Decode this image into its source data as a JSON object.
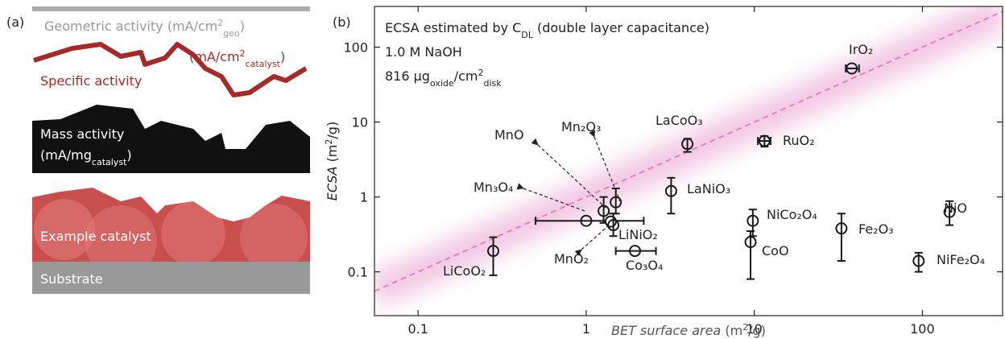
{
  "panel_a": {
    "label": "(a)",
    "geometric": [
      {
        "text": "Geometric activity (mA/cm"
      },
      {
        "text": "2",
        "sup": true
      },
      {
        "text": "geo",
        "sub": true
      },
      {
        "text": ")"
      }
    ],
    "specific_unit": [
      {
        "text": "(mA/cm"
      },
      {
        "text": "2",
        "sup": true
      },
      {
        "text": "catalyst",
        "sub": true
      },
      {
        "text": ")"
      }
    ],
    "specific": "Specific activity",
    "mass": "Mass activity",
    "mass_unit": [
      {
        "text": "(mA/mg"
      },
      {
        "text": "catalyst",
        "sub": true
      },
      {
        "text": ")"
      }
    ],
    "catalyst": "Example catalyst",
    "substrate": "Substrate"
  },
  "chart_data": {
    "type": "scatter",
    "panel_label": "(b)",
    "annotations": [
      [
        {
          "text": "ECSA estimated by C"
        },
        {
          "text": "DL",
          "sub": true
        },
        {
          "text": " (double layer capacitance)"
        }
      ],
      [
        {
          "text": "1.0 M NaOH"
        }
      ],
      [
        {
          "text": "816 μg"
        },
        {
          "text": "oxide",
          "sub": true
        },
        {
          "text": "/cm"
        },
        {
          "text": "2",
          "sup": true
        },
        {
          "text": "disk",
          "sub": true
        }
      ]
    ],
    "x_label": [
      {
        "text": "BET surface area",
        "italic": true
      },
      {
        "text": " (m"
      },
      {
        "text": "2",
        "sup": true
      },
      {
        "text": "/g)"
      }
    ],
    "y_label": [
      {
        "text": "ECSA",
        "italic": true
      },
      {
        "text": " (m"
      },
      {
        "text": "2",
        "sup": true
      },
      {
        "text": "/g)"
      }
    ],
    "xlim": [
      0.055,
      300
    ],
    "ylim": [
      0.026,
      350
    ],
    "xticks": [
      0.1,
      1,
      10,
      100
    ],
    "yticks": [
      0.1,
      1,
      10,
      100
    ],
    "log_x": true,
    "log_y": true,
    "marker_color": "#1a1a1a",
    "guide_line": {
      "x": [
        0.055,
        300
      ],
      "y": [
        0.055,
        300
      ],
      "color": "#e27bbd"
    },
    "points": [
      {
        "name": "LiCoO₂",
        "x": 0.28,
        "y": 0.19,
        "y_err": [
          0.09,
          0.29
        ]
      },
      {
        "name": "Mn₃O₄",
        "x": 1.0,
        "y": 0.48,
        "x_err": [
          0.5,
          2.2
        ]
      },
      {
        "name": "MnO",
        "x": 1.27,
        "y": 0.65,
        "y_err": [
          0.45,
          1.0
        ]
      },
      {
        "name": "Mn₂O₃",
        "x": 1.5,
        "y": 0.85,
        "y_err": [
          0.6,
          1.3
        ]
      },
      {
        "name": "MnO₂",
        "x": 1.4,
        "y": 0.47
      },
      {
        "name": "LiNiO₂",
        "x": 1.45,
        "y": 0.42,
        "y_err": [
          0.3,
          0.6
        ]
      },
      {
        "name": "Co₃O₄",
        "x": 1.95,
        "y": 0.19,
        "x_err": [
          1.5,
          2.6
        ]
      },
      {
        "name": "LaNiO₃",
        "x": 3.2,
        "y": 1.2,
        "y_err": [
          0.6,
          1.8
        ]
      },
      {
        "name": "LaCoO₃",
        "x": 4.0,
        "y": 5.1,
        "y_err": [
          4.0,
          6.0
        ]
      },
      {
        "name": "RuO₂",
        "x": 11.5,
        "y": 5.6,
        "x_err": [
          10.5,
          12.5
        ],
        "y_err": [
          4.7,
          6.5
        ]
      },
      {
        "name": "IrO₂",
        "x": 38,
        "y": 52,
        "x_err": [
          35,
          42
        ]
      },
      {
        "name": "NiCo₂O₄",
        "x": 9.8,
        "y": 0.48,
        "y_err": [
          0.3,
          0.68
        ]
      },
      {
        "name": "CoO",
        "x": 9.5,
        "y": 0.25,
        "y_err": [
          0.08,
          0.35
        ]
      },
      {
        "name": "Fe₂O₃",
        "x": 33,
        "y": 0.38,
        "y_err": [
          0.14,
          0.6
        ]
      },
      {
        "name": "NiO",
        "x": 145,
        "y": 0.63,
        "y_err": [
          0.42,
          0.88
        ]
      },
      {
        "name": "NiFe₂O₄",
        "x": 95,
        "y": 0.14,
        "y_err": [
          0.1,
          0.18
        ]
      }
    ]
  }
}
